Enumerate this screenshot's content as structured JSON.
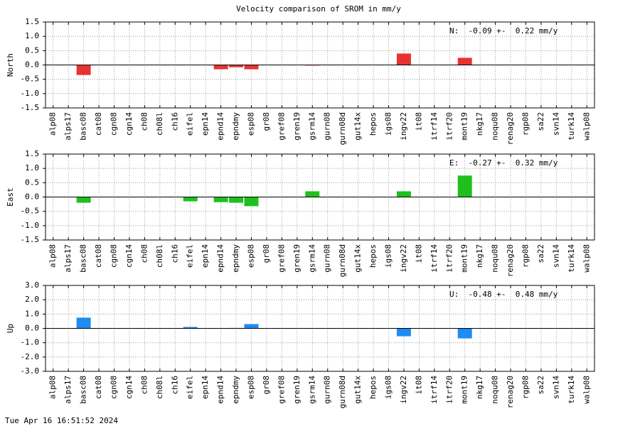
{
  "title": "Velocity comparison of SROM in mm/y",
  "timestamp": "Tue Apr 16 16:51:52 2024",
  "chart_data": [
    {
      "type": "bar",
      "ylabel": "North",
      "annotation": "N:  -0.09 +-  0.22 mm/y",
      "color": "#e83232",
      "categories": [
        "alp08",
        "alps17",
        "basc08",
        "cat08",
        "cgn08",
        "cgn14",
        "ch08",
        "ch08l",
        "ch16",
        "eifel",
        "epn14",
        "epnd14",
        "epndmy",
        "esp08",
        "gr08",
        "gref08",
        "gren19",
        "gsrm14",
        "gurn08",
        "gurn08d",
        "gut14x",
        "hepos",
        "igs08",
        "ingv22",
        "it08",
        "itrf14",
        "itrf20",
        "mont19",
        "nkg17",
        "noqu08",
        "renag20",
        "rgp08",
        "sa22",
        "svn14",
        "turk14",
        "walp08"
      ],
      "values": [
        0,
        0,
        -0.35,
        0,
        0,
        0,
        0,
        0,
        0,
        0,
        0,
        -0.15,
        -0.08,
        -0.15,
        0,
        0,
        0,
        -0.02,
        0,
        0,
        0,
        0,
        0,
        0.4,
        0,
        0,
        0,
        0.25,
        0,
        0,
        0,
        0,
        0,
        0,
        0,
        0
      ],
      "ylim": [
        -1.5,
        1.5
      ],
      "yticks": [
        -1.5,
        {
          "value": -1,
          "label": "-1.0"
        },
        -0.5,
        {
          "value": 0,
          "label": "0.0"
        },
        0.5,
        {
          "value": 1,
          "label": "1.0"
        },
        1.5
      ],
      "grid": true
    },
    {
      "type": "bar",
      "ylabel": "East",
      "annotation": "E:  -0.27 +-  0.32 mm/y",
      "color": "#1ec01e",
      "categories": [
        "alp08",
        "alps17",
        "basc08",
        "cat08",
        "cgn08",
        "cgn14",
        "ch08",
        "ch08l",
        "ch16",
        "eifel",
        "epn14",
        "epnd14",
        "epndmy",
        "esp08",
        "gr08",
        "gref08",
        "gren19",
        "gsrm14",
        "gurn08",
        "gurn08d",
        "gut14x",
        "hepos",
        "igs08",
        "ingv22",
        "it08",
        "itrf14",
        "itrf20",
        "mont19",
        "nkg17",
        "noqu08",
        "renag20",
        "rgp08",
        "sa22",
        "svn14",
        "turk14",
        "walp08"
      ],
      "values": [
        0,
        0,
        -0.2,
        0,
        0,
        0,
        0,
        0,
        0,
        -0.15,
        0,
        -0.18,
        -0.2,
        -0.32,
        0,
        0,
        0,
        0.2,
        0,
        0,
        0,
        0,
        0,
        0.2,
        0,
        0,
        0,
        0.75,
        0,
        0,
        0,
        0,
        0,
        0,
        0,
        0
      ],
      "ylim": [
        -1.5,
        1.5
      ],
      "yticks": [
        -1.5,
        {
          "value": -1,
          "label": "-1.0"
        },
        -0.5,
        {
          "value": 0,
          "label": "0.0"
        },
        0.5,
        {
          "value": 1,
          "label": "1.0"
        },
        1.5
      ],
      "grid": true
    },
    {
      "type": "bar",
      "ylabel": "Up",
      "annotation": "U:  -0.48 +-  0.48 mm/y",
      "color": "#1e8cf0",
      "categories": [
        "alp08",
        "alps17",
        "basc08",
        "cat08",
        "cgn08",
        "cgn14",
        "ch08",
        "ch08l",
        "ch16",
        "eifel",
        "epn14",
        "epnd14",
        "epndmy",
        "esp08",
        "gr08",
        "gref08",
        "gren19",
        "gsrm14",
        "gurn08",
        "gurn08d",
        "gut14x",
        "hepos",
        "igs08",
        "ingv22",
        "it08",
        "itrf14",
        "itrf20",
        "mont19",
        "nkg17",
        "noqu08",
        "renag20",
        "rgp08",
        "sa22",
        "svn14",
        "turk14",
        "walp08"
      ],
      "values": [
        0,
        0,
        0.75,
        0,
        0,
        0,
        0,
        0,
        0,
        0.1,
        0,
        0,
        0.03,
        0.3,
        0,
        0,
        0,
        0,
        0,
        0,
        0,
        0,
        0,
        -0.55,
        0,
        0,
        0,
        -0.7,
        0,
        0,
        0,
        0,
        0,
        0,
        0,
        0
      ],
      "ylim": [
        -3,
        3
      ],
      "yticks": [
        {
          "value": -3,
          "label": "-3.0"
        },
        {
          "value": -2,
          "label": "-2.0"
        },
        {
          "value": -1,
          "label": "-1.0"
        },
        {
          "value": 0,
          "label": "0.0"
        },
        {
          "value": 1,
          "label": "1.0"
        },
        {
          "value": 2,
          "label": "2.0"
        },
        {
          "value": 3,
          "label": "3.0"
        }
      ],
      "grid": true
    }
  ]
}
